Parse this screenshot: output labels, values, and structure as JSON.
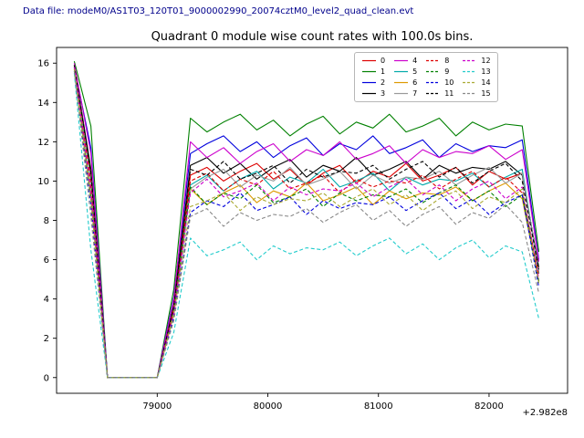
{
  "header": {
    "data_file_label": "Data file: modeM0/AS1T03_120T01_9000002990_20074cztM0_level2_quad_clean.evt",
    "data_file_color": "#00008b"
  },
  "chart_data": {
    "type": "line",
    "title": "Quadrant 0 module wise count rates with 100.0s bins.",
    "xlabel": "",
    "ylabel": "",
    "x_offset_label": "+2.982e8",
    "xlim": [
      78090,
      82710
    ],
    "ylim": [
      -0.8,
      16.8
    ],
    "x_ticks": [
      79000,
      80000,
      81000,
      82000
    ],
    "y_ticks": [
      0,
      2,
      4,
      6,
      8,
      10,
      12,
      14,
      16
    ],
    "grid": false,
    "legend_position": "upper center-right",
    "legend_columns": 4,
    "x": [
      78250,
      78400,
      78550,
      78700,
      78850,
      79000,
      79150,
      79300,
      79450,
      79600,
      79750,
      79900,
      80050,
      80200,
      80350,
      80500,
      80650,
      80800,
      80950,
      81100,
      81250,
      81400,
      81550,
      81700,
      81850,
      82000,
      82150,
      82300,
      82450
    ],
    "series": [
      {
        "name": "0",
        "color": "#dd0000",
        "dash": false,
        "values": [
          15.9,
          10.3,
          0,
          0,
          0,
          0,
          3.6,
          10.3,
          10.7,
          10.0,
          10.5,
          10.9,
          10.1,
          10.6,
          9.8,
          10.4,
          10.8,
          9.9,
          10.5,
          10.2,
          10.9,
          10.0,
          10.3,
          10.7,
          9.8,
          10.5,
          10.1,
          10.4,
          5.5
        ]
      },
      {
        "name": "1",
        "color": "#008000",
        "dash": false,
        "values": [
          16.1,
          12.8,
          0,
          0,
          0,
          0,
          4.5,
          13.2,
          12.5,
          13.0,
          13.4,
          12.6,
          13.1,
          12.3,
          12.9,
          13.3,
          12.4,
          13.0,
          12.7,
          13.4,
          12.5,
          12.8,
          13.2,
          12.3,
          13.0,
          12.6,
          12.9,
          12.8,
          6.4
        ]
      },
      {
        "name": "2",
        "color": "#0000dd",
        "dash": false,
        "values": [
          15.8,
          11.7,
          0,
          0,
          0,
          0,
          4.1,
          11.4,
          11.9,
          12.3,
          11.5,
          12.0,
          11.2,
          11.8,
          12.2,
          11.3,
          11.9,
          11.6,
          12.3,
          11.4,
          11.7,
          12.1,
          11.2,
          11.9,
          11.5,
          11.8,
          11.7,
          12.1,
          6.0
        ]
      },
      {
        "name": "3",
        "color": "#000000",
        "dash": false,
        "values": [
          15.9,
          10.6,
          0,
          0,
          0,
          0,
          3.7,
          10.8,
          11.2,
          10.4,
          10.9,
          10.1,
          10.7,
          11.1,
          10.2,
          10.8,
          10.5,
          11.2,
          10.3,
          10.6,
          11.0,
          10.1,
          10.8,
          10.4,
          10.7,
          10.6,
          11.0,
          10.3,
          5.6
        ]
      },
      {
        "name": "4",
        "color": "#cc00cc",
        "dash": false,
        "values": [
          16.0,
          11.4,
          0,
          0,
          0,
          0,
          4.0,
          12.0,
          11.2,
          11.7,
          10.9,
          11.5,
          11.9,
          11.0,
          11.6,
          11.3,
          12.0,
          11.1,
          11.4,
          11.8,
          10.9,
          11.6,
          11.2,
          11.5,
          11.4,
          11.8,
          11.1,
          11.6,
          5.9
        ]
      },
      {
        "name": "5",
        "color": "#00aaaa",
        "dash": false,
        "values": [
          15.8,
          10.0,
          0,
          0,
          0,
          0,
          3.5,
          9.8,
          10.3,
          9.5,
          10.1,
          10.5,
          9.6,
          10.2,
          9.9,
          10.6,
          9.7,
          10.0,
          10.4,
          9.5,
          10.2,
          9.8,
          10.1,
          10.0,
          10.4,
          9.7,
          10.2,
          10.6,
          5.3
        ]
      },
      {
        "name": "6",
        "color": "#dd9900",
        "dash": false,
        "values": [
          15.7,
          9.3,
          0,
          0,
          0,
          0,
          3.3,
          9.6,
          8.8,
          9.4,
          9.8,
          8.9,
          9.5,
          9.2,
          9.9,
          9.0,
          9.3,
          9.7,
          8.8,
          9.5,
          9.1,
          9.4,
          9.3,
          9.7,
          9.0,
          9.5,
          9.9,
          9.1,
          4.9
        ]
      },
      {
        "name": "7",
        "color": "#999999",
        "dash": false,
        "values": [
          15.9,
          10.1,
          0,
          0,
          0,
          0,
          3.5,
          9.6,
          10.2,
          10.6,
          9.7,
          10.3,
          10.0,
          10.7,
          9.8,
          10.1,
          10.5,
          9.6,
          10.3,
          9.9,
          10.2,
          10.1,
          10.5,
          9.8,
          10.3,
          10.7,
          9.9,
          10.4,
          5.4
        ]
      },
      {
        "name": "8",
        "color": "#dd0000",
        "dash": true,
        "values": [
          15.8,
          9.9,
          0,
          0,
          0,
          0,
          3.5,
          10.0,
          10.4,
          9.5,
          10.1,
          9.8,
          10.5,
          9.6,
          9.9,
          10.3,
          9.4,
          10.1,
          9.7,
          10.0,
          9.9,
          10.3,
          9.6,
          10.1,
          10.5,
          9.7,
          10.2,
          9.4,
          5.2
        ]
      },
      {
        "name": "9",
        "color": "#008000",
        "dash": true,
        "values": [
          15.7,
          9.2,
          0,
          0,
          0,
          0,
          3.2,
          9.7,
          8.8,
          9.4,
          9.1,
          9.8,
          8.9,
          9.2,
          9.6,
          8.7,
          9.4,
          9.0,
          9.3,
          9.2,
          9.6,
          8.9,
          9.4,
          9.8,
          9.0,
          9.5,
          8.7,
          9.3,
          4.9
        ]
      },
      {
        "name": "10",
        "color": "#0000dd",
        "dash": true,
        "values": [
          15.6,
          8.8,
          0,
          0,
          0,
          0,
          3.1,
          8.4,
          9.0,
          8.7,
          9.4,
          8.5,
          8.8,
          9.2,
          8.3,
          9.0,
          8.6,
          8.9,
          8.8,
          9.2,
          8.5,
          9.0,
          9.4,
          8.6,
          9.1,
          8.3,
          8.9,
          9.3,
          4.6
        ]
      },
      {
        "name": "11",
        "color": "#000000",
        "dash": true,
        "values": [
          15.9,
          10.4,
          0,
          0,
          0,
          0,
          3.6,
          10.6,
          10.3,
          11.0,
          10.1,
          10.4,
          10.8,
          9.9,
          10.6,
          10.2,
          10.5,
          10.4,
          10.8,
          10.1,
          10.6,
          11.0,
          10.2,
          10.7,
          9.9,
          10.5,
          10.9,
          10.0,
          5.5
        ]
      },
      {
        "name": "12",
        "color": "#cc00cc",
        "dash": true,
        "values": [
          15.8,
          9.5,
          0,
          0,
          0,
          0,
          3.3,
          9.4,
          10.1,
          9.2,
          9.5,
          9.9,
          9.0,
          9.7,
          9.3,
          9.6,
          9.5,
          9.9,
          9.2,
          9.7,
          10.1,
          9.3,
          9.8,
          9.0,
          9.6,
          10.0,
          9.1,
          9.7,
          5.0
        ]
      },
      {
        "name": "13",
        "color": "#22cccc",
        "dash": true,
        "values": [
          15.5,
          6.5,
          0,
          0,
          0,
          0,
          2.3,
          7.1,
          6.2,
          6.5,
          6.9,
          6.0,
          6.7,
          6.3,
          6.6,
          6.5,
          6.9,
          6.2,
          6.7,
          7.1,
          6.3,
          6.8,
          6.0,
          6.6,
          7.0,
          6.1,
          6.7,
          6.4,
          3.0
        ]
      },
      {
        "name": "14",
        "color": "#aaaa33",
        "dash": true,
        "values": [
          15.7,
          9.0,
          0,
          0,
          0,
          0,
          3.2,
          8.7,
          9.0,
          9.4,
          8.5,
          9.2,
          8.8,
          9.1,
          9.0,
          9.4,
          8.7,
          9.2,
          9.6,
          8.8,
          9.3,
          8.5,
          9.1,
          9.5,
          8.6,
          9.2,
          8.9,
          9.6,
          4.8
        ]
      },
      {
        "name": "15",
        "color": "#888888",
        "dash": true,
        "values": [
          15.6,
          8.2,
          0,
          0,
          0,
          0,
          2.9,
          8.2,
          8.6,
          7.7,
          8.4,
          8.0,
          8.3,
          8.2,
          8.6,
          7.9,
          8.4,
          8.8,
          8.0,
          8.5,
          7.7,
          8.3,
          8.7,
          7.8,
          8.4,
          8.1,
          8.8,
          7.9,
          4.3
        ]
      }
    ]
  }
}
